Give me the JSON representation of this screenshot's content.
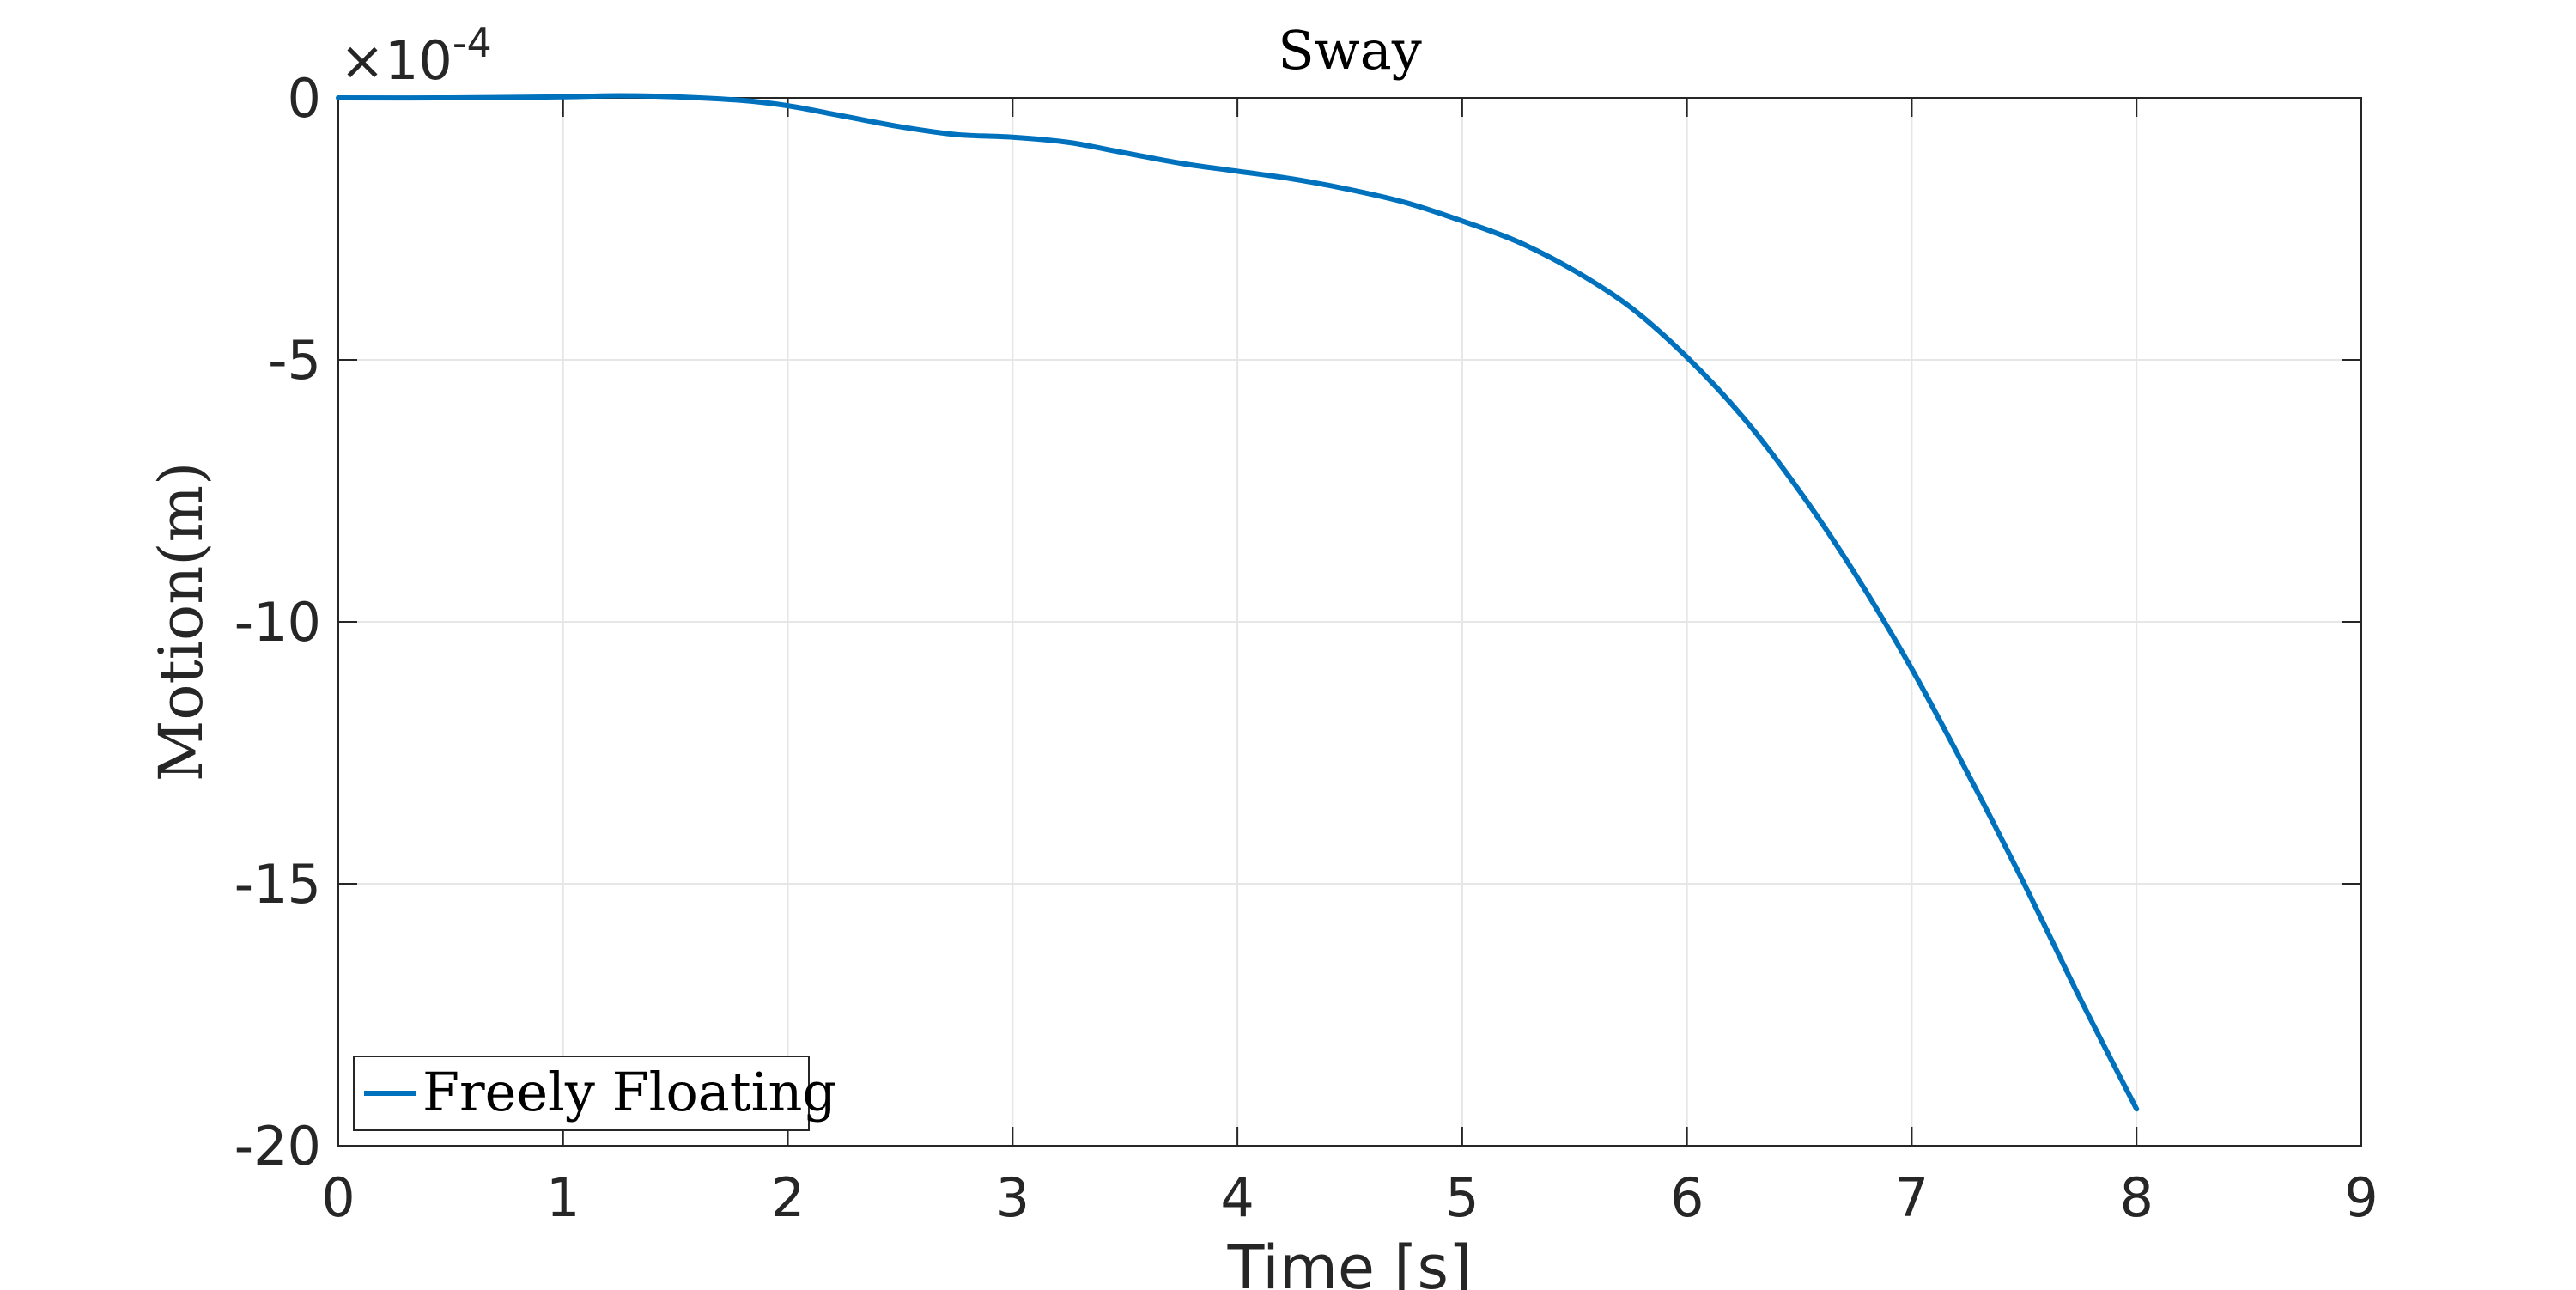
{
  "chart_data": {
    "type": "line",
    "title": "Sway",
    "xlabel": "Time [s]",
    "ylabel": "Motion(m)",
    "y_exponent_label": "×10",
    "y_exponent_power": "-4",
    "xlim": [
      0,
      9
    ],
    "ylim": [
      -20,
      0
    ],
    "x_ticks": [
      0,
      1,
      2,
      3,
      4,
      5,
      6,
      7,
      8,
      9
    ],
    "y_ticks": [
      0,
      -5,
      -10,
      -15,
      -20
    ],
    "grid": true,
    "legend_position": "bottom-left",
    "series": [
      {
        "name": "Freely Floating",
        "color": "#0072bd",
        "x": [
          0,
          0.5,
          1,
          1.25,
          1.5,
          1.8,
          2,
          2.25,
          2.5,
          2.75,
          3,
          3.25,
          3.5,
          3.75,
          4,
          4.25,
          4.5,
          4.75,
          5,
          5.25,
          5.5,
          5.75,
          6,
          6.25,
          6.5,
          6.75,
          7,
          7.25,
          7.5,
          7.75,
          8
        ],
        "y": [
          0,
          0,
          0.02,
          0.04,
          0.02,
          -0.05,
          -0.15,
          -0.35,
          -0.55,
          -0.7,
          -0.75,
          -0.85,
          -1.05,
          -1.25,
          -1.4,
          -1.55,
          -1.75,
          -2.0,
          -2.35,
          -2.75,
          -3.3,
          -4.0,
          -4.95,
          -6.1,
          -7.5,
          -9.1,
          -10.9,
          -12.9,
          -15.0,
          -17.2,
          -19.3
        ]
      }
    ]
  }
}
